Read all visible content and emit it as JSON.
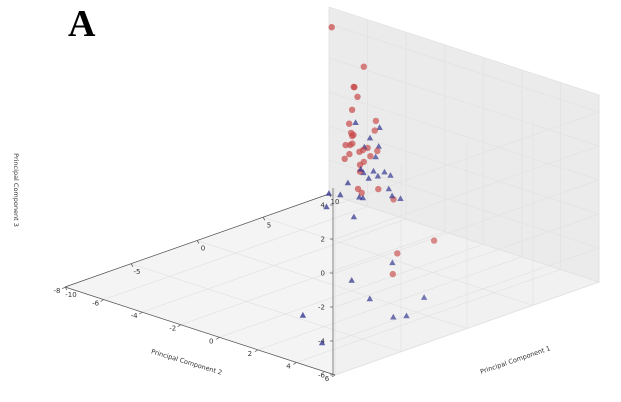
{
  "panel_label": "A",
  "chart_data": {
    "type": "scatter3d",
    "xlabel": "Principal Component 1",
    "ylabel": "Principal Component 2",
    "zlabel": "Principal Component 3",
    "xlim": [
      -10,
      10
    ],
    "ylim": [
      -8,
      6
    ],
    "zlim": [
      -6,
      5
    ],
    "x_ticks": [
      "-10",
      "-5",
      "0",
      "5",
      "10"
    ],
    "y_ticks": [
      "6",
      "4",
      "2",
      "0",
      "-2",
      "-4",
      "-6",
      "-8"
    ],
    "z_ticks": [
      "4",
      "2",
      "0",
      "-2",
      "-4",
      "-6"
    ],
    "grid": true,
    "panes": true,
    "series": [
      {
        "marker": "triangle",
        "color": "#2b2f8c",
        "points": [
          [
            -7.4,
            5.2,
            2.3
          ],
          [
            -6.0,
            4.6,
            4.5
          ],
          [
            -4.5,
            4.8,
            4.0
          ],
          [
            -3.7,
            3.8,
            4.3
          ],
          [
            -2.3,
            1.8,
            5.2
          ],
          [
            -1.8,
            2.7,
            5.1
          ],
          [
            -1.8,
            2.2,
            4.3
          ],
          [
            -3.5,
            3.3,
            2.8
          ],
          [
            -3.0,
            4.0,
            2.3
          ],
          [
            -2.0,
            3.4,
            2.6
          ],
          [
            -1.5,
            1.7,
            3.5
          ],
          [
            -0.7,
            1.9,
            3.4
          ],
          [
            -0.8,
            3.1,
            0.8
          ],
          [
            -1.0,
            2.8,
            0.9
          ],
          [
            -1.2,
            2.2,
            1.9
          ],
          [
            -0.4,
            0.9,
            1.4
          ],
          [
            -0.8,
            1.7,
            1.9
          ],
          [
            -0.4,
            0.1,
            0.5
          ],
          [
            1.8,
            -1.8,
            -1.5
          ],
          [
            -4.0,
            3.7,
            -4.0
          ],
          [
            0.9,
            -1.9,
            -2.0
          ],
          [
            4.0,
            -3.9,
            -2.8
          ],
          [
            -5.0,
            5.6,
            -4.1
          ],
          [
            -4.0,
            5.6,
            -4.3
          ],
          [
            -4.5,
            3.1,
            -3.0
          ],
          [
            -6.0,
            1.6,
            -5.2
          ],
          [
            -8.2,
            4.1,
            -5.3
          ],
          [
            -1.5,
            4.8,
            -4.2
          ],
          [
            -2.0,
            3.5,
            -2.5
          ],
          [
            0.0,
            0.6,
            -0.3
          ],
          [
            -1.0,
            1.1,
            0.2
          ]
        ]
      },
      {
        "marker": "circle",
        "color": "#c84a4a",
        "points": [
          [
            -1.2,
            2.1,
            5.1
          ],
          [
            -1.0,
            1.9,
            4.4
          ],
          [
            -1.1,
            2.1,
            3.3
          ],
          [
            1.2,
            -0.5,
            4.9
          ],
          [
            2.7,
            -1.2,
            6.0
          ],
          [
            4.8,
            -4.3,
            6.6
          ],
          [
            1.1,
            -0.7,
            2.1
          ],
          [
            0.8,
            -0.5,
            2.7
          ],
          [
            2.5,
            -1.6,
            1.9
          ],
          [
            1.3,
            -0.9,
            2.6
          ],
          [
            0.8,
            0.1,
            1.4
          ],
          [
            1.3,
            0.1,
            1.6
          ],
          [
            1.9,
            -0.7,
            1.5
          ],
          [
            4.3,
            -2.9,
            2.4
          ],
          [
            3.8,
            -2.7,
            0.0
          ],
          [
            5.6,
            -3.9,
            -0.4
          ],
          [
            5.2,
            -3.9,
            -1.1
          ],
          [
            3.0,
            -1.6,
            0.0
          ],
          [
            2.2,
            -1.8,
            1.3
          ],
          [
            1.1,
            -0.3,
            0.6
          ],
          [
            0.8,
            -0.2,
            -0.3
          ],
          [
            0.5,
            0.2,
            -0.3
          ],
          [
            -0.6,
            2.6,
            0.5
          ],
          [
            0.0,
            1.4,
            0.5
          ],
          [
            -6.3,
            6.7,
            0.4
          ],
          [
            -2.2,
            5.8,
            -0.3
          ],
          [
            -2.7,
            4.0,
            -2.8
          ],
          [
            1.2,
            -0.4,
            1.7
          ],
          [
            0.8,
            0.3,
            2.3
          ],
          [
            8.0,
            -6.7,
            8.2
          ],
          [
            7.0,
            -4.9,
            0.1
          ],
          [
            8.8,
            -5.9,
            1.4
          ],
          [
            9.0,
            -6.0,
            1.3
          ]
        ]
      }
    ]
  }
}
